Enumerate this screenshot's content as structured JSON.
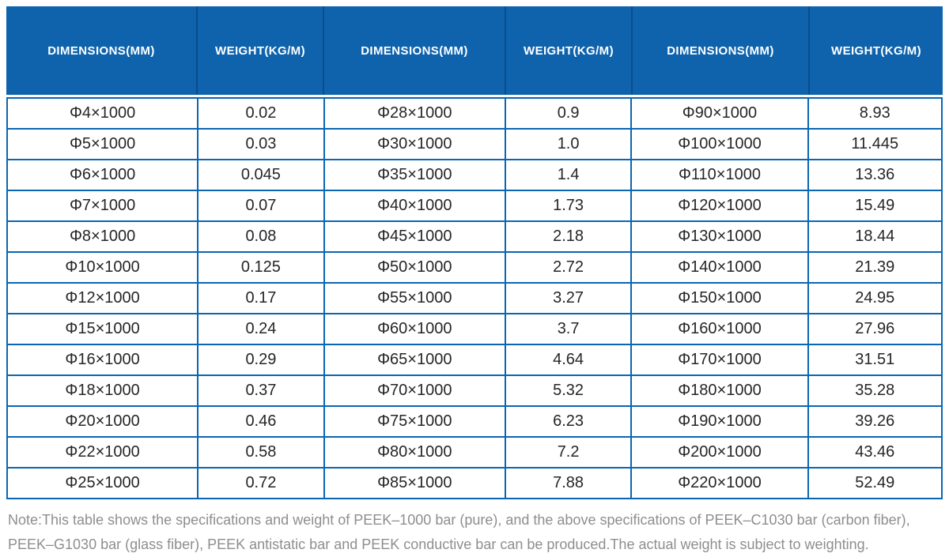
{
  "colors": {
    "header_bg": "#0f63ac",
    "header_divider": "#0a4d8c",
    "grid_border": "#0a66b2",
    "body_text": "#262626",
    "note_text": "#8e8e8e"
  },
  "table": {
    "headers": [
      "DIMENSIONS(MM)",
      "WEIGHT(KG/M)",
      "DIMENSIONS(MM)",
      "WEIGHT(KG/M)",
      "DIMENSIONS(MM)",
      "WEIGHT(KG/M)"
    ],
    "rows": [
      [
        "Φ4×1000",
        "0.02",
        "Φ28×1000",
        "0.9",
        "Φ90×1000",
        "8.93"
      ],
      [
        "Φ5×1000",
        "0.03",
        "Φ30×1000",
        "1.0",
        "Φ100×1000",
        "11.445"
      ],
      [
        "Φ6×1000",
        "0.045",
        "Φ35×1000",
        "1.4",
        "Φ110×1000",
        "13.36"
      ],
      [
        "Φ7×1000",
        "0.07",
        "Φ40×1000",
        "1.73",
        "Φ120×1000",
        "15.49"
      ],
      [
        "Φ8×1000",
        "0.08",
        "Φ45×1000",
        "2.18",
        "Φ130×1000",
        "18.44"
      ],
      [
        "Φ10×1000",
        "0.125",
        "Φ50×1000",
        "2.72",
        "Φ140×1000",
        "21.39"
      ],
      [
        "Φ12×1000",
        "0.17",
        "Φ55×1000",
        "3.27",
        "Φ150×1000",
        "24.95"
      ],
      [
        "Φ15×1000",
        "0.24",
        "Φ60×1000",
        "3.7",
        "Φ160×1000",
        "27.96"
      ],
      [
        "Φ16×1000",
        "0.29",
        "Φ65×1000",
        "4.64",
        "Φ170×1000",
        "31.51"
      ],
      [
        "Φ18×1000",
        "0.37",
        "Φ70×1000",
        "5.32",
        "Φ180×1000",
        "35.28"
      ],
      [
        "Φ20×1000",
        "0.46",
        "Φ75×1000",
        "6.23",
        "Φ190×1000",
        "39.26"
      ],
      [
        "Φ22×1000",
        "0.58",
        "Φ80×1000",
        "7.2",
        "Φ200×1000",
        "43.46"
      ],
      [
        "Φ25×1000",
        "0.72",
        "Φ85×1000",
        "7.88",
        "Φ220×1000",
        "52.49"
      ]
    ]
  },
  "note": "Note:This table shows the specifications and weight of PEEK–1000 bar (pure), and the above specifications of PEEK–C1030 bar (carbon fiber), PEEK–G1030 bar (glass fiber), PEEK antistatic bar and PEEK conductive bar can be produced.The actual weight is subject to weighting."
}
